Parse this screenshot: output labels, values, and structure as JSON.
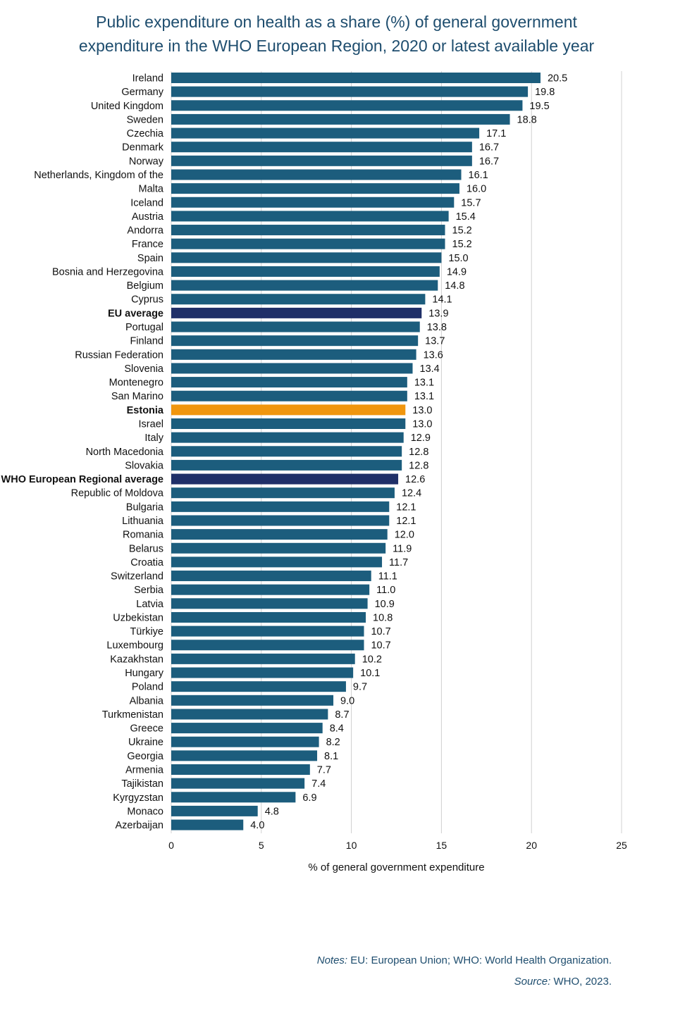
{
  "title_lines": [
    "Public expenditure on health as a share (%) of general government",
    "expenditure in the WHO European Region, 2020 or latest available year"
  ],
  "notes": {
    "notes_label": "Notes:",
    "notes_text": " EU: European Union; WHO: World Health Organization.",
    "source_label": "Source:",
    "source_text": " WHO, 2023."
  },
  "colors": {
    "bar": "#1c5d7d",
    "average": "#1f2f68",
    "highlight": "#f0960e",
    "gridline": "#d0d0d0",
    "title": "#1e4d6e"
  },
  "chart_data": {
    "type": "bar",
    "orientation": "horizontal",
    "title": "Public expenditure on health as a share (%) of general government expenditure in the WHO European Region, 2020 or latest available year",
    "xlabel": "% of general government expenditure",
    "ylabel": "",
    "xlim": [
      0,
      25
    ],
    "xticks": [
      0,
      5,
      10,
      15,
      20,
      25
    ],
    "grid": true,
    "legend": "none",
    "categories": [
      "Ireland",
      "Germany",
      "United Kingdom",
      "Sweden",
      "Czechia",
      "Denmark",
      "Norway",
      "Netherlands, Kingdom of the",
      "Malta",
      "Iceland",
      "Austria",
      "Andorra",
      "France",
      "Spain",
      "Bosnia and Herzegovina",
      "Belgium",
      "Cyprus",
      "EU average",
      "Portugal",
      "Finland",
      "Russian Federation",
      "Slovenia",
      "Montenegro",
      "San Marino",
      "Estonia",
      "Israel",
      "Italy",
      "North Macedonia",
      "Slovakia",
      "WHO European Regional average",
      "Republic of Moldova",
      "Bulgaria",
      "Lithuania",
      "Romania",
      "Belarus",
      "Croatia",
      "Switzerland",
      "Serbia",
      "Latvia",
      "Uzbekistan",
      "Türkiye",
      "Luxembourg",
      "Kazakhstan",
      "Hungary",
      "Poland",
      "Albania",
      "Turkmenistan",
      "Greece",
      "Ukraine",
      "Georgia",
      "Armenia",
      "Tajikistan",
      "Kyrgyzstan",
      "Monaco",
      "Azerbaijan"
    ],
    "values": [
      20.5,
      19.8,
      19.5,
      18.8,
      17.1,
      16.7,
      16.7,
      16.1,
      16.0,
      15.7,
      15.4,
      15.2,
      15.2,
      15.0,
      14.9,
      14.8,
      14.1,
      13.9,
      13.8,
      13.7,
      13.6,
      13.4,
      13.1,
      13.1,
      13.0,
      13.0,
      12.9,
      12.8,
      12.8,
      12.6,
      12.4,
      12.1,
      12.1,
      12.0,
      11.9,
      11.7,
      11.1,
      11.0,
      10.9,
      10.8,
      10.7,
      10.7,
      10.2,
      10.1,
      9.7,
      9.0,
      8.7,
      8.4,
      8.2,
      8.1,
      7.7,
      7.4,
      6.9,
      4.8,
      4.0
    ],
    "value_labels": [
      "20.5",
      "19.8",
      "19.5",
      "18.8",
      "17.1",
      "16.7",
      "16.7",
      "16.1",
      "16.0",
      "15.7",
      "15.4",
      "15.2",
      "15.2",
      "15.0",
      "14.9",
      "14.8",
      "14.1",
      "13.9",
      "13.8",
      "13.7",
      "13.6",
      "13.4",
      "13.1",
      "13.1",
      "13.0",
      "13.0",
      "12.9",
      "12.8",
      "12.8",
      "12.6",
      "12.4",
      "12.1",
      "12.1",
      "12.0",
      "11.9",
      "11.7",
      "11.1",
      "11.0",
      "10.9",
      "10.8",
      "10.7",
      "10.7",
      "10.2",
      "10.1",
      "9.7",
      "9.0",
      "8.7",
      "8.4",
      "8.2",
      "8.1",
      "7.7",
      "7.4",
      "6.9",
      "4.8",
      "4.0"
    ],
    "averages": [
      "EU average",
      "WHO European Regional average"
    ],
    "highlighted": [
      "Estonia"
    ]
  }
}
